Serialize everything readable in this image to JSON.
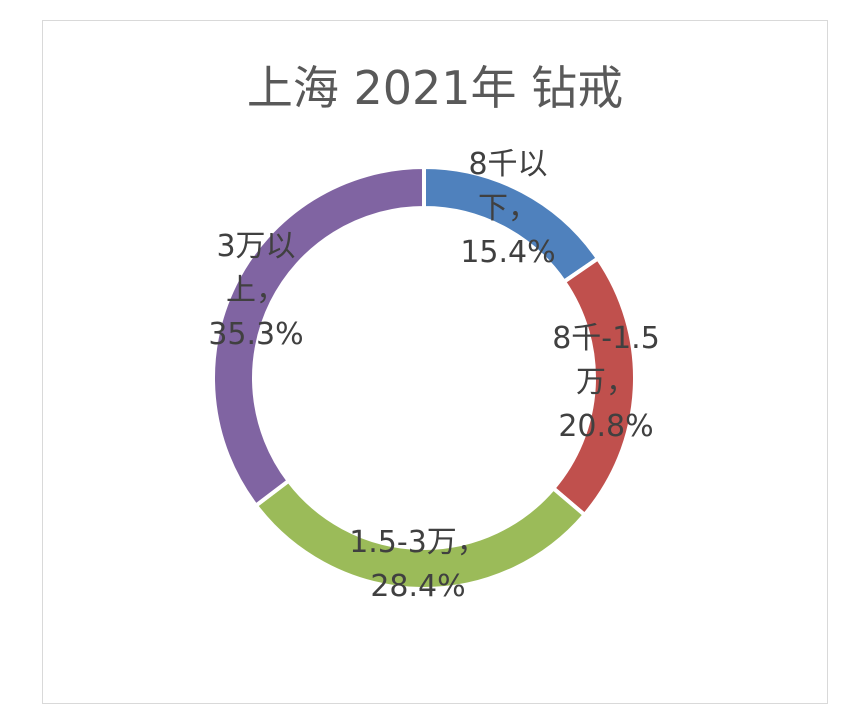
{
  "chart_data": {
    "type": "pie",
    "subtype": "doughnut",
    "title": "上海 2021年 钻戒",
    "legend": "none",
    "slices": [
      {
        "label": "8千以下",
        "value": 15.4,
        "percent_text": "15.4%",
        "color": "#4f81bd",
        "data_label_lines": [
          "8千以",
          "下，",
          "15.4%"
        ]
      },
      {
        "label": "8千-1.5万",
        "value": 20.8,
        "percent_text": "20.8%",
        "color": "#c0504d",
        "data_label_lines": [
          "8千-1.5",
          "万，",
          "20.8%"
        ]
      },
      {
        "label": "1.5-3万",
        "value": 28.4,
        "percent_text": "28.4%",
        "color": "#9bbb59",
        "data_label_lines": [
          "1.5-3万，",
          "28.4%"
        ]
      },
      {
        "label": "3万以上",
        "value": 35.3,
        "percent_text": "35.3%",
        "color": "#8064a2",
        "data_label_lines": [
          "3万以",
          "上，",
          "35.3%"
        ]
      }
    ]
  }
}
